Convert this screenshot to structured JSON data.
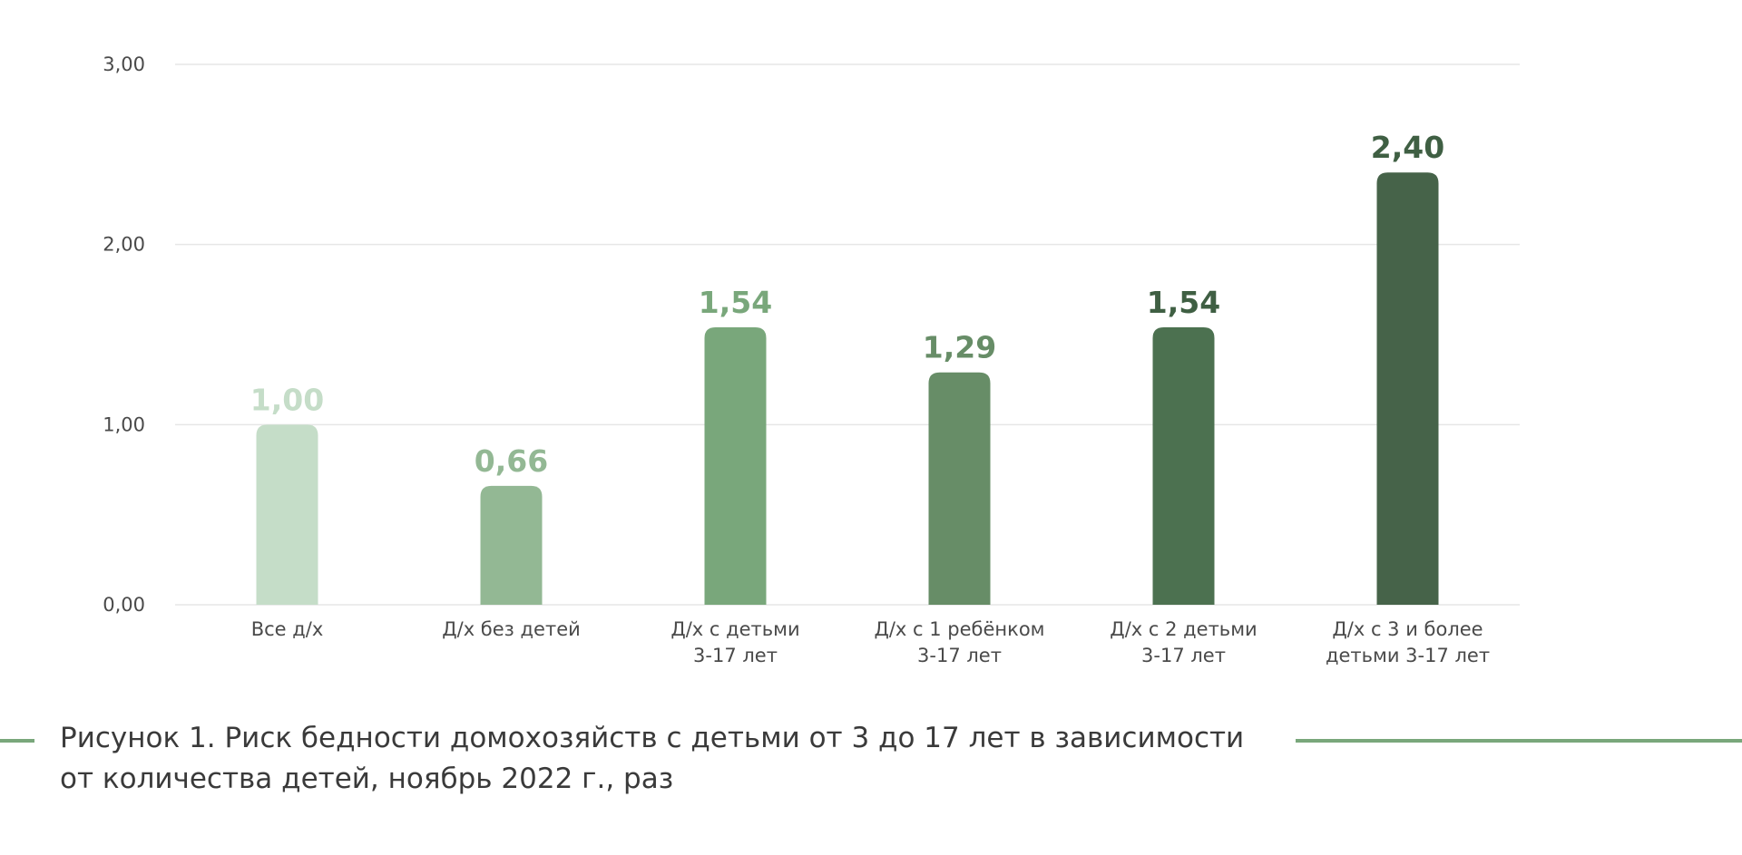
{
  "chart_data": {
    "type": "bar",
    "title": "",
    "xlabel": "",
    "ylabel": "",
    "ylim": [
      0,
      3
    ],
    "yticks": [
      0,
      1,
      2,
      3
    ],
    "ytick_labels": [
      "0,00",
      "1,00",
      "2,00",
      "3,00"
    ],
    "grid": true,
    "legend": "none",
    "categories": [
      [
        "Все д/х"
      ],
      [
        "Д/х без детей"
      ],
      [
        "Д/х с детьми",
        "3-17 лет"
      ],
      [
        "Д/х с 1 ребёнком",
        "3-17 лет"
      ],
      [
        "Д/х с 2 детьми",
        "3-17 лет"
      ],
      [
        "Д/х с 3 и более",
        "детьми 3-17 лет"
      ]
    ],
    "values": [
      1.0,
      0.66,
      1.54,
      1.29,
      1.54,
      2.4
    ],
    "value_labels": [
      "1,00",
      "0,66",
      "1,54",
      "1,29",
      "1,54",
      "2,40"
    ],
    "bar_colors": [
      "#c5ddc8",
      "#93b894",
      "#79a77b",
      "#678d67",
      "#4c7150",
      "#466349"
    ],
    "label_colors": [
      "#c5ddc8",
      "#93b894",
      "#79a77b",
      "#678d67",
      "#3f5f43",
      "#3f5f43"
    ]
  },
  "caption": {
    "text": "Рисунок 1. Риск бедности домохозяйств с детьми от 3 до 17 лет в зависимости от количества детей, ноябрь 2022 г., раз",
    "line_color": "#79a77b"
  }
}
